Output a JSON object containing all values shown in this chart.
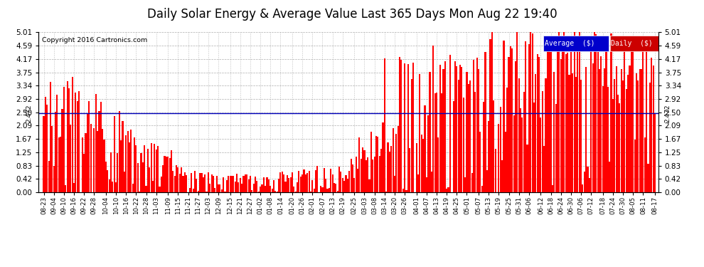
{
  "title": "Daily Solar Energy & Average Value Last 365 Days Mon Aug 22 19:40",
  "copyright": "Copyright 2016 Cartronics.com",
  "avg_line_value": 2.472,
  "avg_label": "2.472",
  "ylim": [
    0.0,
    5.01
  ],
  "yticks": [
    0.0,
    0.42,
    0.83,
    1.25,
    1.67,
    2.09,
    2.5,
    2.92,
    3.34,
    3.75,
    4.17,
    4.59,
    5.01
  ],
  "bar_color": "#FF0000",
  "avg_line_color": "#0000BB",
  "background_color": "#FFFFFF",
  "grid_color": "#999999",
  "title_fontsize": 12,
  "legend_avg_color": "#0000CC",
  "legend_daily_color": "#CC0000",
  "x_labels": [
    "08-23",
    "09-04",
    "09-10",
    "09-16",
    "09-22",
    "09-28",
    "10-04",
    "10-10",
    "10-16",
    "10-22",
    "10-28",
    "11-03",
    "11-09",
    "11-15",
    "11-21",
    "11-27",
    "12-03",
    "12-09",
    "12-15",
    "12-21",
    "12-27",
    "01-02",
    "01-08",
    "01-14",
    "01-20",
    "01-26",
    "02-01",
    "02-07",
    "02-13",
    "02-19",
    "02-25",
    "03-03",
    "03-08",
    "03-14",
    "03-20",
    "03-26",
    "04-01",
    "04-07",
    "04-13",
    "04-19",
    "04-25",
    "05-01",
    "05-07",
    "05-13",
    "05-19",
    "05-25",
    "05-31",
    "06-06",
    "06-12",
    "06-18",
    "06-24",
    "06-30",
    "07-06",
    "07-12",
    "07-18",
    "07-24",
    "07-30",
    "08-05",
    "08-11",
    "08-17"
  ],
  "num_bars": 365,
  "seed": 12345
}
